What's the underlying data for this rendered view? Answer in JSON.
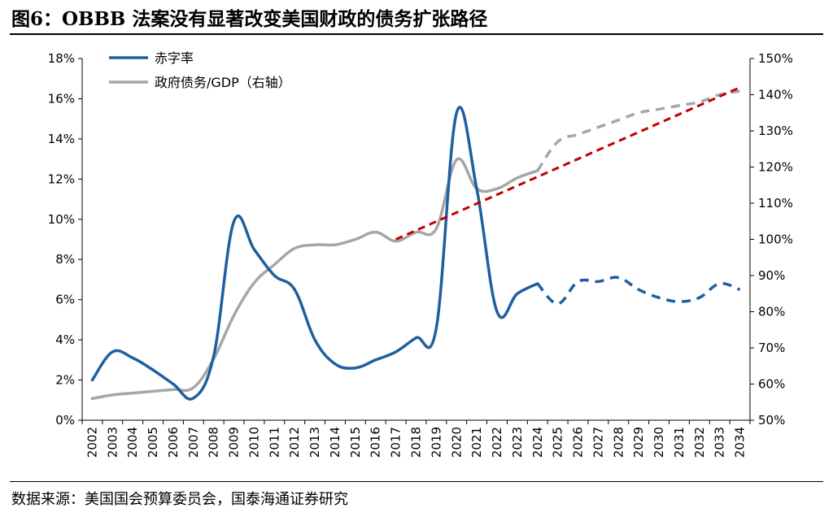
{
  "figure": {
    "title": "图6：OBBB 法案没有显著改变美国财政的债务扩张路径",
    "source": "数据来源：美国国会预算委员会，国泰海通证券研究"
  },
  "chart_data": {
    "type": "line",
    "x": [
      "2002",
      "2003",
      "2004",
      "2005",
      "2006",
      "2007",
      "2008",
      "2009",
      "2010",
      "2011",
      "2012",
      "2013",
      "2014",
      "2015",
      "2016",
      "2017",
      "2018",
      "2019",
      "2020",
      "2021",
      "2022",
      "2023",
      "2024",
      "2025",
      "2026",
      "2027",
      "2028",
      "2029",
      "2030",
      "2031",
      "2032",
      "2033",
      "2034"
    ],
    "y_left": {
      "label": "",
      "min": 0,
      "max": 18,
      "ticks": [
        0,
        2,
        4,
        6,
        8,
        10,
        12,
        14,
        16,
        18
      ],
      "tick_labels": [
        "0%",
        "2%",
        "4%",
        "6%",
        "8%",
        "10%",
        "12%",
        "14%",
        "16%",
        "18%"
      ]
    },
    "y_right": {
      "label": "",
      "min": 50,
      "max": 150,
      "ticks": [
        50,
        60,
        70,
        80,
        90,
        100,
        110,
        120,
        130,
        140,
        150
      ],
      "tick_labels": [
        "50%",
        "60%",
        "70%",
        "80%",
        "90%",
        "100%",
        "110%",
        "120%",
        "130%",
        "140%",
        "150%"
      ]
    },
    "series": [
      {
        "name": "赤字率",
        "axis": "left",
        "color": "#1f5fa0",
        "values": [
          2.0,
          3.4,
          3.1,
          2.5,
          1.8,
          1.1,
          3.2,
          9.9,
          8.5,
          7.2,
          6.5,
          4.0,
          2.8,
          2.6,
          3.0,
          3.4,
          4.1,
          4.6,
          15.3,
          11.5,
          5.4,
          6.3,
          6.8,
          5.8,
          6.9,
          6.9,
          7.1,
          6.5,
          6.1,
          5.9,
          6.1,
          6.8,
          6.5
        ],
        "projection_from_index": 22
      },
      {
        "name": "政府债务/GDP（右轴）",
        "axis": "right",
        "color": "#a6a6a6",
        "values": [
          56,
          57,
          57.5,
          58,
          58.5,
          59,
          67,
          79,
          88,
          93,
          97.5,
          98.5,
          98.5,
          100,
          102,
          99.5,
          102,
          103,
          122,
          114,
          114,
          117,
          119,
          127,
          129,
          131,
          133,
          135,
          136,
          137,
          138,
          140,
          141
        ],
        "projection_from_index": 22
      },
      {
        "name": "",
        "axis": "right",
        "color": "#c00000",
        "style": "dashed",
        "x": [
          "2017",
          "2034"
        ],
        "values": [
          100,
          142
        ]
      }
    ],
    "legend": {
      "position": "top-left",
      "entries": [
        "赤字率",
        "政府债务/GDP（右轴）"
      ]
    },
    "grid": false
  }
}
